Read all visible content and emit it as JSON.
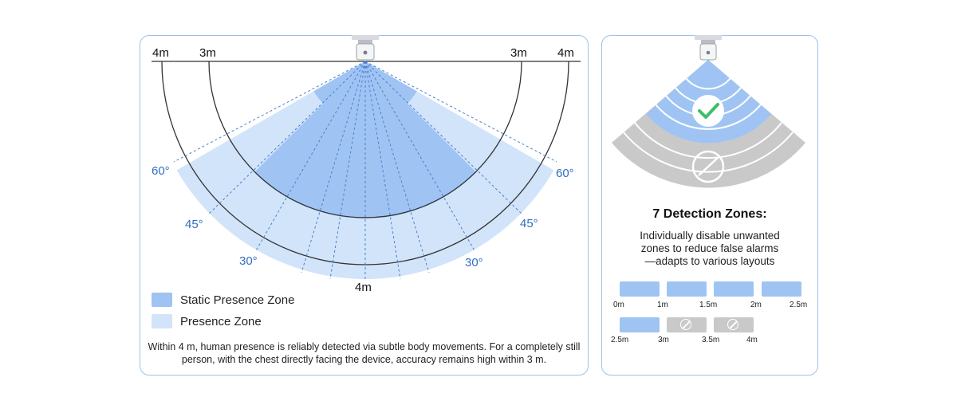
{
  "range_diagram": {
    "distance_labels": {
      "outer_left": "4m",
      "inner_left": "3m",
      "inner_right": "3m",
      "outer_right": "4m",
      "bottom": "4m"
    },
    "angle_labels": {
      "left_60": "60°",
      "left_45": "45°",
      "left_30": "30°",
      "right_30": "30°",
      "right_45": "45°",
      "right_60": "60°"
    },
    "colors": {
      "static_zone": "#9fc4f4",
      "presence_zone": "#d2e4fa",
      "angle_label": "#2f6fc0",
      "panel_border": "#9cc2ec"
    }
  },
  "legend": {
    "static_label": "Static Presence Zone",
    "presence_label": "Presence Zone"
  },
  "caption": "Within 4 m, human presence is reliably detected via subtle body movements.  For a completely still person, with the chest directly facing the device, accuracy remains high within 3 m.",
  "zones_panel": {
    "title": "7 Detection Zones:",
    "description_lines": [
      "Individually disable unwanted",
      "zones to reduce false alarms",
      "—adapts to  various layouts"
    ],
    "row1_labels": [
      "0m",
      "1m",
      "1.5m",
      "2m",
      "2.5m"
    ],
    "row2_labels": [
      "2.5m",
      "3m",
      "3.5m",
      "4m"
    ],
    "row1_states": [
      "enabled",
      "enabled",
      "enabled",
      "enabled"
    ],
    "row2_states": [
      "enabled",
      "disabled",
      "disabled"
    ],
    "colors": {
      "enabled": "#9fc4f4",
      "disabled": "#c9c9c9",
      "check": "#3bbf6a"
    }
  }
}
